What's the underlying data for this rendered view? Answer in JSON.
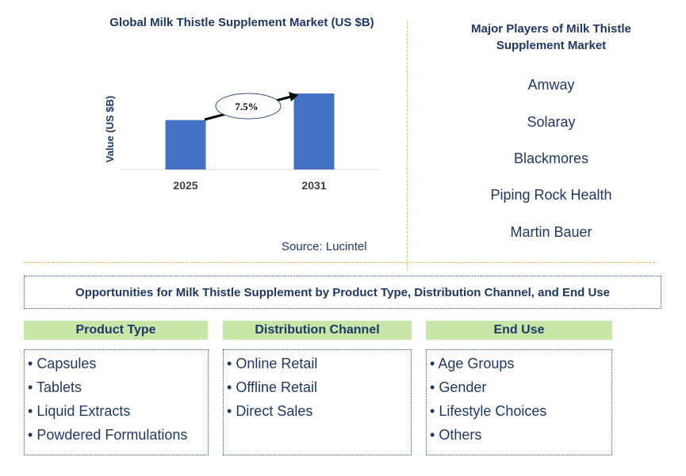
{
  "chart_data": {
    "type": "bar",
    "title": "Global Milk Thistle Supplement Market (US $B)",
    "ylabel": "Value (US $B)",
    "categories": [
      "2025",
      "2031"
    ],
    "values": [
      0.65,
      1.0
    ],
    "ylim": [
      0,
      1.0
    ],
    "bar_color": "#4472c4",
    "cagr_label": "7.5%",
    "grid": false,
    "source": "Source: Lucintel"
  },
  "players": {
    "title": "Major Players of Milk Thistle Supplement Market",
    "items": [
      "Amway",
      "Solaray",
      "Blackmores",
      "Piping Rock Health",
      "Martin Bauer"
    ]
  },
  "opportunities": {
    "title": "Opportunities for Milk Thistle Supplement by Product Type, Distribution Channel, and End Use"
  },
  "categories": [
    {
      "heading": "Product Type",
      "items": [
        "Capsules",
        "Tablets",
        "Liquid Extracts",
        "Powdered Formulations"
      ]
    },
    {
      "heading": "Distribution Channel",
      "items": [
        "Online Retail",
        "Offline Retail",
        "Direct Sales"
      ]
    },
    {
      "heading": "End Use",
      "items": [
        "Age Groups",
        "Gender",
        "Lifestyle Choices",
        "Others"
      ]
    }
  ],
  "colors": {
    "header_bg": "#c8e6a8",
    "divider": "#f2b84b",
    "text": "#1f3864"
  }
}
